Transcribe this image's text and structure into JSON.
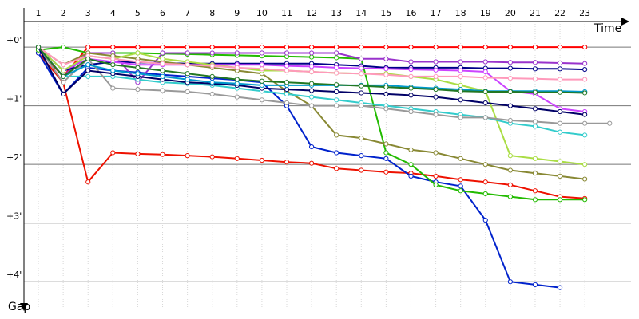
{
  "chart_data": {
    "type": "line",
    "x_label": "Time",
    "y_label": "Gap",
    "x": [
      1,
      2,
      3,
      4,
      5,
      6,
      7,
      8,
      9,
      10,
      11,
      12,
      13,
      14,
      15,
      16,
      17,
      18,
      19,
      20,
      21,
      22,
      23,
      24
    ],
    "xlim": [
      0.42,
      24.86
    ],
    "xticks": [
      1,
      2,
      3,
      4,
      5,
      6,
      7,
      8,
      9,
      10,
      11,
      12,
      13,
      14,
      15,
      16,
      17,
      18,
      19,
      20,
      21,
      22,
      23
    ],
    "ylim": [
      -0.6,
      4.5
    ],
    "y_inverted": true,
    "yticks": [
      {
        "value": 0,
        "label": "+0'"
      },
      {
        "value": 1,
        "label": "+1'"
      },
      {
        "value": 2,
        "label": "+2'"
      },
      {
        "value": 3,
        "label": "+3'"
      },
      {
        "value": 4,
        "label": "+4'"
      }
    ],
    "grid": true,
    "series": [
      {
        "color": "#ff0000",
        "values": [
          0.05,
          0.5,
          0,
          0,
          0,
          0,
          0,
          0,
          0,
          0,
          0,
          0,
          0,
          0,
          0,
          0,
          0,
          0,
          0,
          0,
          0,
          0,
          0,
          null
        ]
      },
      {
        "color": "#ee1100",
        "values": [
          0.1,
          0.6,
          2.3,
          1.8,
          1.82,
          1.83,
          1.85,
          1.87,
          1.9,
          1.93,
          1.96,
          1.98,
          2.07,
          2.1,
          2.13,
          2.15,
          2.2,
          2.26,
          2.3,
          2.35,
          2.45,
          2.55,
          2.58,
          null
        ]
      },
      {
        "color": "#0022cc",
        "values": [
          0.1,
          0.8,
          0.35,
          0.4,
          0.43,
          0.47,
          0.5,
          0.53,
          0.56,
          0.6,
          1.0,
          1.7,
          1.8,
          1.85,
          1.9,
          2.2,
          2.3,
          2.37,
          2.95,
          4.0,
          4.05,
          4.1,
          null,
          null
        ]
      },
      {
        "color": "#22bb00",
        "values": [
          0.05,
          0,
          0.1,
          0.1,
          0.1,
          0.11,
          0.12,
          0.13,
          0.14,
          0.15,
          0.16,
          0.17,
          0.18,
          0.2,
          1.8,
          2.0,
          2.35,
          2.45,
          2.5,
          2.55,
          2.6,
          2.6,
          2.6,
          null
        ]
      },
      {
        "color": "#9933cc",
        "values": [
          0,
          0.5,
          0.1,
          0.1,
          0.6,
          0.1,
          0.1,
          0.1,
          0.1,
          0.1,
          0.1,
          0.1,
          0.1,
          0.2,
          0.2,
          0.25,
          0.25,
          0.25,
          0.25,
          0.26,
          0.26,
          0.27,
          0.28,
          null
        ]
      },
      {
        "color": "#000088",
        "values": [
          0,
          0.4,
          0.3,
          0.25,
          0.26,
          0.27,
          0.28,
          0.28,
          0.28,
          0.28,
          0.28,
          0.28,
          0.3,
          0.32,
          0.35,
          0.35,
          0.35,
          0.35,
          0.36,
          0.36,
          0.37,
          0.37,
          0.38,
          null
        ]
      },
      {
        "color": "#cc44ff",
        "values": [
          0,
          0.4,
          0.2,
          0.25,
          0.3,
          0.3,
          0.3,
          0.3,
          0.3,
          0.3,
          0.32,
          0.33,
          0.35,
          0.36,
          0.37,
          0.38,
          0.39,
          0.4,
          0.42,
          0.75,
          0.8,
          1.05,
          1.1,
          null
        ]
      },
      {
        "color": "#888833",
        "values": [
          0,
          0.3,
          0.1,
          0.15,
          0.2,
          0.25,
          0.3,
          0.35,
          0.4,
          0.45,
          0.75,
          1.0,
          1.5,
          1.55,
          1.65,
          1.75,
          1.8,
          1.9,
          2.0,
          2.1,
          2.15,
          2.2,
          2.25,
          null
        ]
      },
      {
        "color": "#aadd44",
        "values": [
          0,
          0.4,
          0.15,
          0.2,
          0.1,
          0.2,
          0.25,
          0.3,
          0.35,
          0.4,
          0.4,
          0.42,
          0.44,
          0.45,
          0.45,
          0.5,
          0.55,
          0.65,
          0.75,
          1.85,
          1.9,
          1.95,
          2.0,
          null
        ]
      },
      {
        "color": "#33cccc",
        "values": [
          0,
          0.5,
          0.5,
          0.5,
          0.55,
          0.6,
          0.62,
          0.65,
          0.7,
          0.75,
          0.8,
          0.85,
          0.9,
          0.95,
          1.0,
          1.05,
          1.1,
          1.15,
          1.2,
          1.3,
          1.35,
          1.45,
          1.5,
          null
        ]
      },
      {
        "color": "#999999",
        "values": [
          0,
          0.6,
          0.2,
          0.7,
          0.72,
          0.74,
          0.76,
          0.8,
          0.85,
          0.9,
          0.95,
          1.0,
          1.0,
          1.0,
          1.05,
          1.1,
          1.15,
          1.2,
          1.2,
          1.25,
          1.27,
          1.3,
          1.3,
          1.3
        ]
      },
      {
        "color": "#000066",
        "values": [
          0,
          0.8,
          0.4,
          0.45,
          0.5,
          0.55,
          0.6,
          0.62,
          0.65,
          0.7,
          0.72,
          0.74,
          0.76,
          0.78,
          0.8,
          0.82,
          0.85,
          0.9,
          0.95,
          1.0,
          1.05,
          1.1,
          1.15,
          null
        ]
      },
      {
        "color": "#ff99bb",
        "values": [
          0,
          0.3,
          0.15,
          0.2,
          0.25,
          0.28,
          0.3,
          0.32,
          0.35,
          0.37,
          0.4,
          0.42,
          0.44,
          0.45,
          0.47,
          0.5,
          0.5,
          0.5,
          0.52,
          0.53,
          0.54,
          0.55,
          0.55,
          null
        ]
      },
      {
        "color": "#0099cc",
        "values": [
          0,
          0.5,
          0.3,
          0.4,
          0.45,
          0.5,
          0.55,
          0.6,
          0.62,
          0.65,
          0.65,
          0.65,
          0.65,
          0.65,
          0.65,
          0.68,
          0.7,
          0.72,
          0.75,
          0.75,
          0.75,
          0.75,
          0.76,
          null
        ]
      },
      {
        "color": "#227722",
        "values": [
          0,
          0.5,
          0.2,
          0.3,
          0.35,
          0.4,
          0.45,
          0.5,
          0.55,
          0.58,
          0.6,
          0.62,
          0.64,
          0.66,
          0.68,
          0.7,
          0.72,
          0.75,
          0.76,
          0.76,
          0.77,
          0.77,
          0.78,
          null
        ]
      }
    ]
  }
}
